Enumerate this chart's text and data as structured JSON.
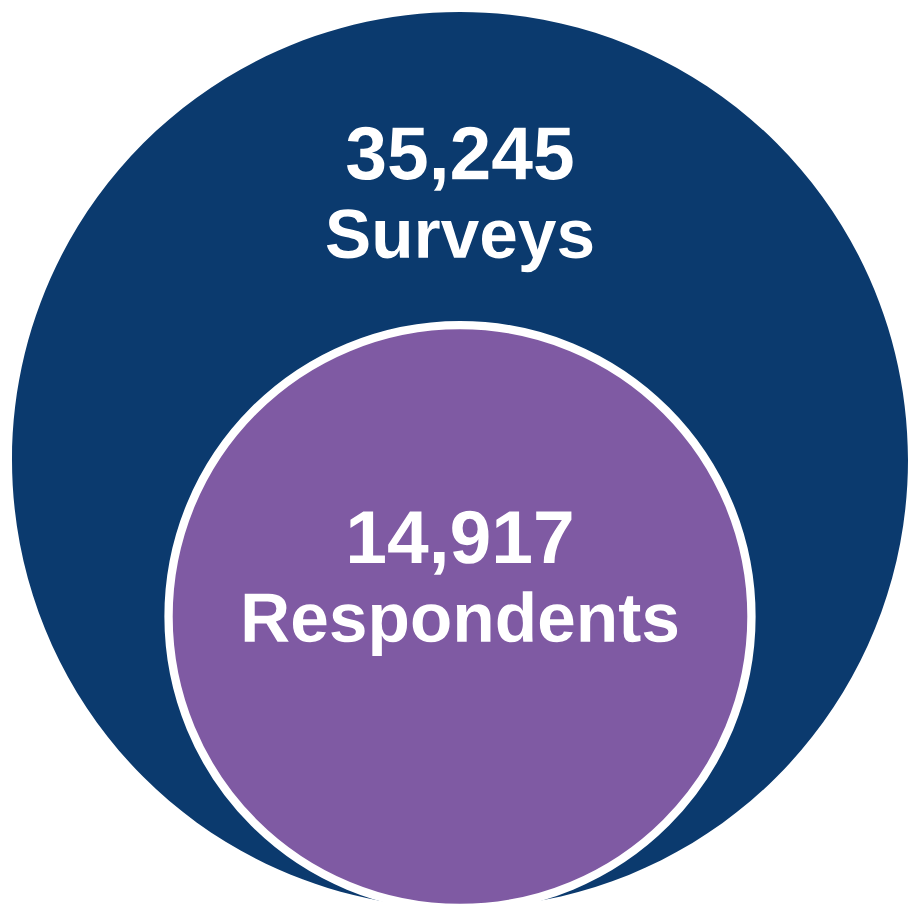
{
  "chart_data": {
    "type": "other",
    "categories": [
      "Surveys",
      "Respondents"
    ],
    "values": [
      35245,
      14917
    ],
    "value_labels": [
      "35,245",
      "14,917"
    ],
    "colors": [
      "#0b3a6e",
      "#7f5aa3"
    ]
  }
}
